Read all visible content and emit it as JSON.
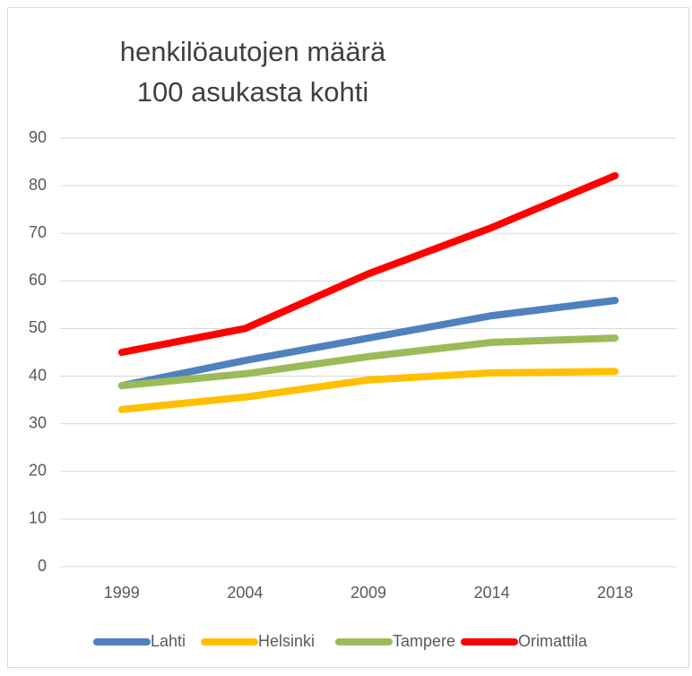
{
  "chart_data": {
    "type": "line",
    "title": [
      "henkilöautojen määrä",
      "100 asukasta kohti"
    ],
    "categories": [
      "1999",
      "2004",
      "2009",
      "2014",
      "2018"
    ],
    "series": [
      {
        "name": "Lahti",
        "color": "#4f81bd",
        "values": [
          38,
          43.3,
          48,
          52.7,
          55.9
        ]
      },
      {
        "name": "Helsinki",
        "color": "#ffc000",
        "values": [
          33,
          35.6,
          39.2,
          40.7,
          41
        ]
      },
      {
        "name": "Tampere",
        "color": "#9bbb59",
        "values": [
          38,
          40.5,
          44.1,
          47.1,
          48
        ]
      },
      {
        "name": "Orimattila",
        "color": "#ff0000",
        "values": [
          45,
          50,
          61.5,
          71.2,
          82.1
        ]
      }
    ],
    "ylim": [
      0,
      90
    ],
    "yticks": [
      0,
      10,
      20,
      30,
      40,
      50,
      60,
      70,
      80,
      90
    ],
    "grid": true,
    "legend": "bottom"
  }
}
